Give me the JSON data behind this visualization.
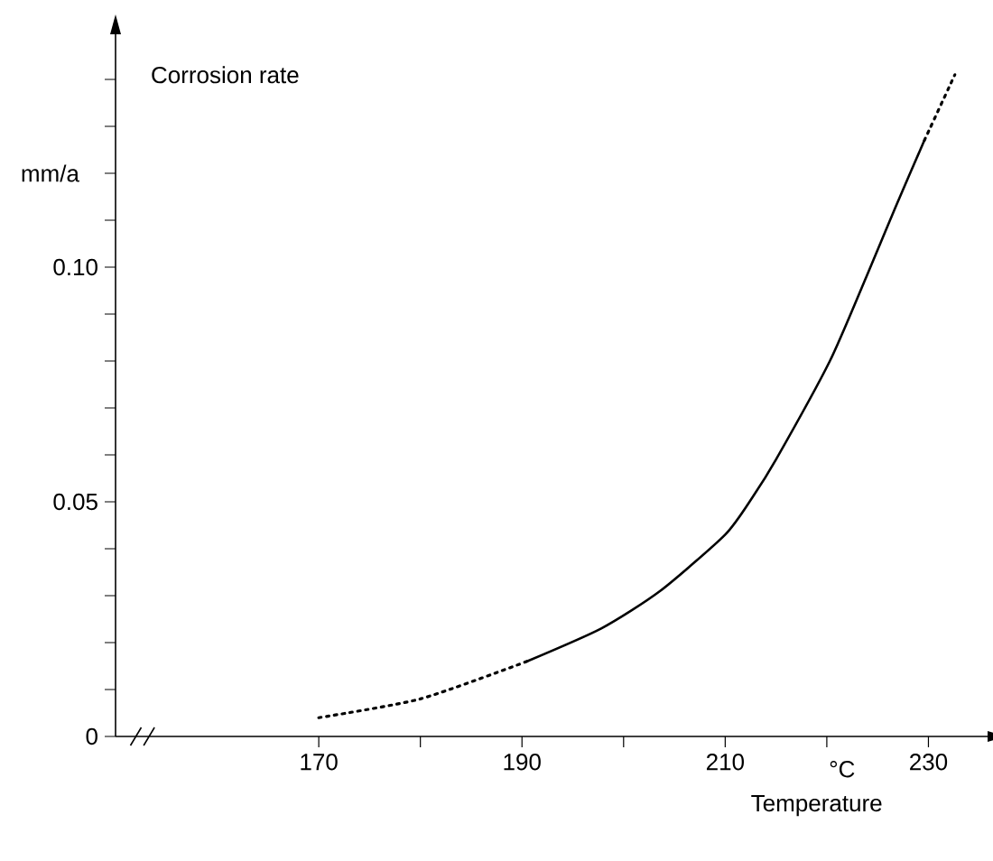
{
  "chart_data": {
    "type": "line",
    "ylabel": "Corrosion rate",
    "xlabel": "Temperature",
    "annotations": [
      "°C",
      "mm/a"
    ],
    "xlim": [
      150,
      236
    ],
    "ylim": [
      0,
      0.15
    ],
    "xticks": [
      170,
      {
        "value": 180,
        "label": null
      },
      190,
      {
        "value": 200,
        "label": null
      },
      210,
      {
        "value": 220,
        "label": null
      },
      230
    ],
    "yticks": [
      0,
      {
        "value": 0.01,
        "label": null
      },
      {
        "value": 0.02,
        "label": null
      },
      {
        "value": 0.03,
        "label": null
      },
      {
        "value": 0.04,
        "label": null
      },
      0.05,
      {
        "value": 0.06,
        "label": null
      },
      {
        "value": 0.07,
        "label": null
      },
      {
        "value": 0.08,
        "label": null
      },
      {
        "value": 0.09,
        "label": null
      },
      {
        "value": 0.1,
        "label": "0.10"
      },
      {
        "value": 0.11,
        "label": null
      },
      {
        "value": 0.12,
        "label": null
      },
      {
        "value": 0.13,
        "label": null
      },
      {
        "value": 0.14,
        "label": null
      }
    ],
    "grid": false,
    "marker": "none",
    "series": [
      {
        "color": "#000000",
        "line_style": "dotted",
        "x": [
          170,
          180,
          190.5
        ],
        "values": [
          0.004,
          0.008,
          0.016
        ]
      },
      {
        "color": "#000000",
        "line_style": "solid",
        "x": [
          190.5,
          197.8,
          203.6,
          210,
          212.7,
          215,
          220.3,
          223.9,
          226.8,
          229.6
        ],
        "values": [
          0.016,
          0.023,
          0.031,
          0.043,
          0.051,
          0.059,
          0.08,
          0.098,
          0.113,
          0.127
        ]
      },
      {
        "color": "#000000",
        "line_style": "dotted",
        "x": [
          229.6,
          232.6
        ],
        "values": [
          0.127,
          0.141
        ]
      }
    ]
  }
}
